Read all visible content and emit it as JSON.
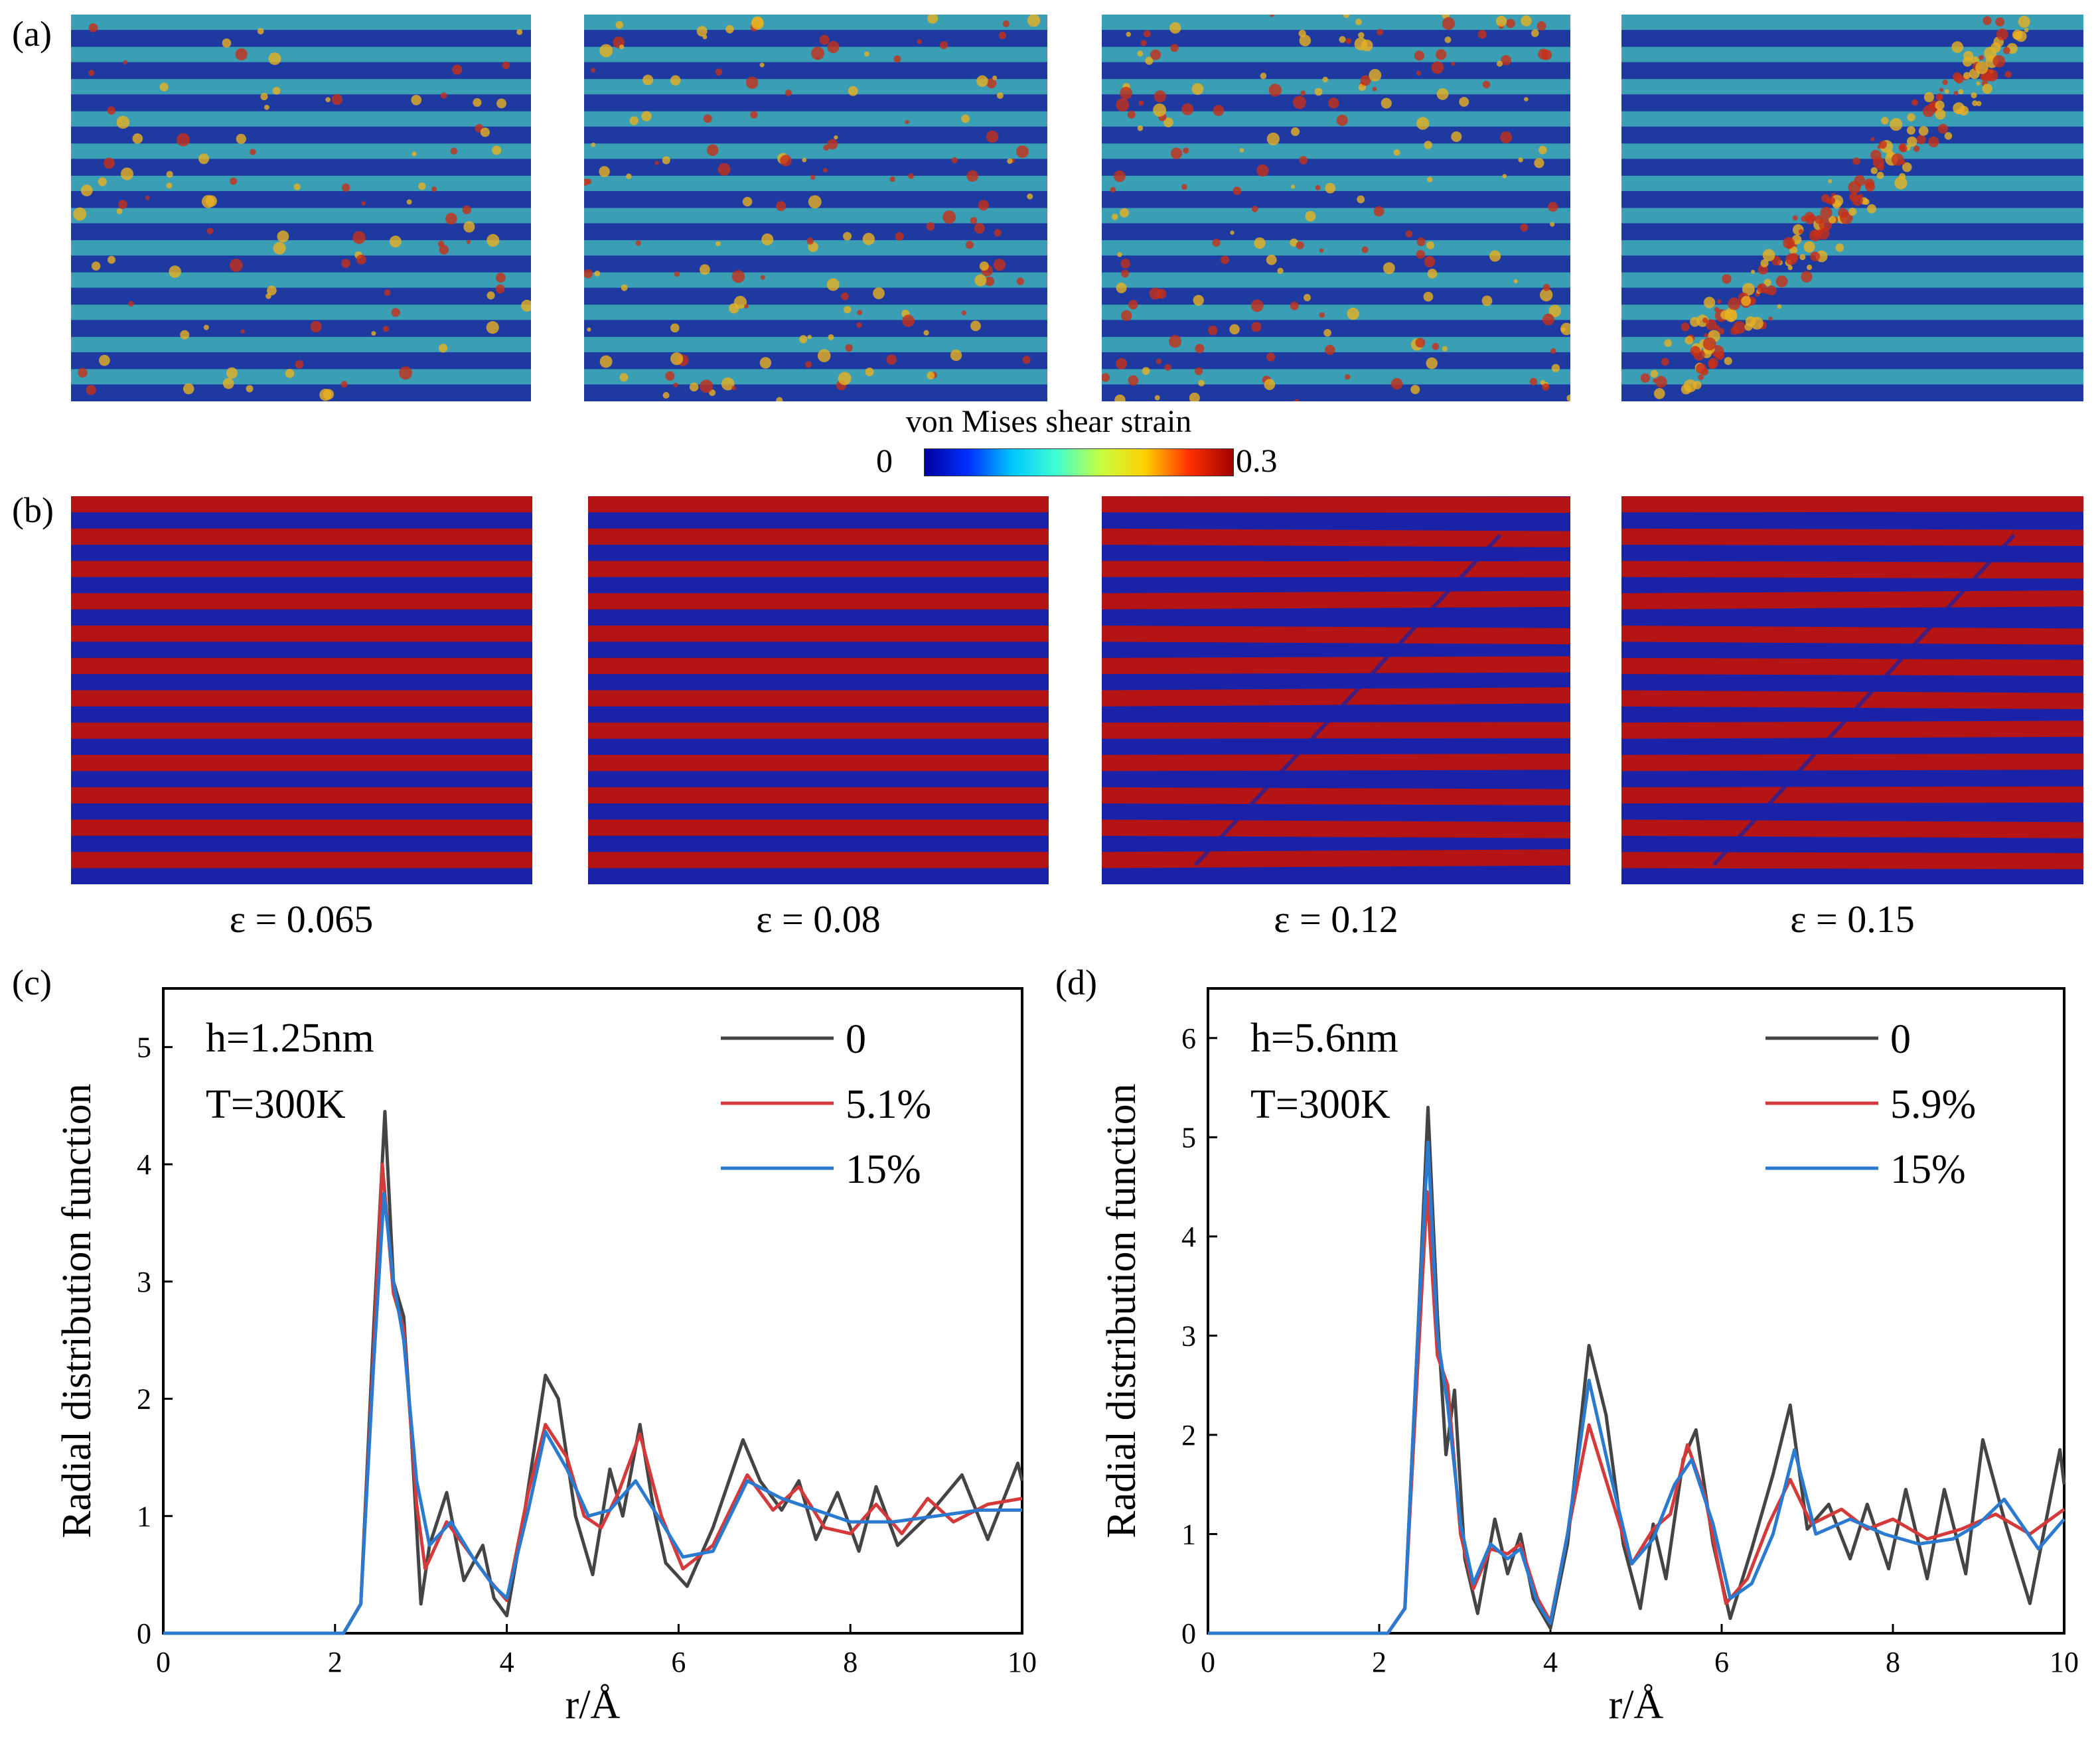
{
  "panels": {
    "a": "(a)",
    "b": "(b)",
    "c": "(c)",
    "d": "(d)"
  },
  "colorbar": {
    "title": "von Mises shear strain",
    "min_label": "0",
    "max_label": "0.3",
    "colors": [
      "#0000a0",
      "#0030ff",
      "#00c8ff",
      "#40ffd0",
      "#c8ff40",
      "#ffd000",
      "#ff3000",
      "#a00000"
    ]
  },
  "strain_levels": [
    "ε = 0.065",
    "ε = 0.08",
    "ε = 0.12",
    "ε = 0.15"
  ],
  "snapshot_colors": {
    "low_strain": "#1f3aa0",
    "mid_strain": "#3fb0b8",
    "high_strain": "#c83018",
    "phase_red": "#b41414",
    "phase_blue": "#1a22a8"
  },
  "chart_data": [
    {
      "type": "line",
      "panel": "(c)",
      "annotations": [
        "h=1.25nm",
        "T=300K"
      ],
      "xlabel": "r/Å",
      "ylabel": "Radial  distribution  function",
      "xlim": [
        0,
        10
      ],
      "ylim": [
        0,
        5.5
      ],
      "xticks": [
        "0",
        "2",
        "4",
        "6",
        "8",
        "10"
      ],
      "yticks": [
        "0",
        "1",
        "2",
        "3",
        "4",
        "5"
      ],
      "series": [
        {
          "name": "0",
          "color": "#444444",
          "x": [
            0,
            2.1,
            2.3,
            2.45,
            2.58,
            2.68,
            2.8,
            2.88,
            3.0,
            3.1,
            3.3,
            3.5,
            3.72,
            3.85,
            4.0,
            4.2,
            4.45,
            4.6,
            4.8,
            5.0,
            5.2,
            5.35,
            5.55,
            5.7,
            5.85,
            6.1,
            6.4,
            6.75,
            6.95,
            7.2,
            7.4,
            7.6,
            7.85,
            8.1,
            8.3,
            8.55,
            8.9,
            9.3,
            9.6,
            9.95,
            10
          ],
          "y": [
            0,
            0,
            0.25,
            2.6,
            4.45,
            3.0,
            2.7,
            1.8,
            0.25,
            0.75,
            1.2,
            0.45,
            0.75,
            0.3,
            0.15,
            1.0,
            2.2,
            2.0,
            1.0,
            0.5,
            1.4,
            1.0,
            1.78,
            1.1,
            0.6,
            0.4,
            0.9,
            1.65,
            1.3,
            1.05,
            1.3,
            0.8,
            1.2,
            0.7,
            1.25,
            0.75,
            1.0,
            1.35,
            0.8,
            1.45,
            1.3
          ]
        },
        {
          "name": "5.1%",
          "color": "#d43a3a",
          "x": [
            0,
            2.1,
            2.3,
            2.45,
            2.55,
            2.68,
            2.8,
            2.95,
            3.05,
            3.3,
            3.55,
            3.8,
            4.0,
            4.25,
            4.45,
            4.7,
            4.9,
            5.1,
            5.3,
            5.55,
            5.8,
            6.05,
            6.4,
            6.8,
            7.1,
            7.4,
            7.7,
            8.0,
            8.3,
            8.6,
            8.9,
            9.2,
            9.6,
            10
          ],
          "y": [
            0,
            0,
            0.25,
            2.4,
            4.0,
            2.9,
            2.6,
            1.1,
            0.55,
            0.95,
            0.7,
            0.45,
            0.28,
            1.2,
            1.78,
            1.5,
            1.0,
            0.9,
            1.2,
            1.7,
            1.0,
            0.55,
            0.75,
            1.35,
            1.05,
            1.25,
            0.9,
            0.85,
            1.1,
            0.85,
            1.15,
            0.95,
            1.1,
            1.15
          ]
        },
        {
          "name": "15%",
          "color": "#2a7ad0",
          "x": [
            0,
            2.1,
            2.3,
            2.45,
            2.57,
            2.68,
            2.8,
            2.95,
            3.1,
            3.35,
            3.6,
            3.85,
            4.0,
            4.25,
            4.45,
            4.7,
            4.95,
            5.2,
            5.5,
            5.8,
            6.05,
            6.4,
            6.8,
            7.2,
            7.6,
            8.0,
            8.5,
            9.0,
            9.5,
            10
          ],
          "y": [
            0,
            0,
            0.25,
            2.3,
            3.75,
            3.0,
            2.5,
            1.3,
            0.75,
            0.95,
            0.65,
            0.4,
            0.3,
            1.05,
            1.72,
            1.4,
            1.0,
            1.05,
            1.3,
            0.95,
            0.65,
            0.7,
            1.3,
            1.15,
            1.05,
            0.95,
            0.95,
            1.0,
            1.05,
            1.05
          ]
        }
      ]
    },
    {
      "type": "line",
      "panel": "(d)",
      "annotations": [
        "h=5.6nm",
        "T=300K"
      ],
      "xlabel": "r/Å",
      "ylabel": "Radial  distribution  function",
      "xlim": [
        0,
        10
      ],
      "ylim": [
        0,
        6.5
      ],
      "xticks": [
        "0",
        "2",
        "4",
        "6",
        "8",
        "10"
      ],
      "yticks": [
        "0",
        "1",
        "2",
        "3",
        "4",
        "5",
        "6"
      ],
      "series": [
        {
          "name": "0",
          "color": "#444444",
          "x": [
            0,
            2.1,
            2.3,
            2.45,
            2.57,
            2.68,
            2.78,
            2.88,
            3.0,
            3.15,
            3.35,
            3.5,
            3.65,
            3.8,
            4.0,
            4.2,
            4.45,
            4.65,
            4.85,
            5.05,
            5.2,
            5.35,
            5.55,
            5.7,
            5.9,
            6.1,
            6.35,
            6.6,
            6.8,
            7.0,
            7.25,
            7.5,
            7.7,
            7.95,
            8.15,
            8.4,
            8.6,
            8.85,
            9.05,
            9.3,
            9.6,
            9.95,
            10
          ],
          "y": [
            0,
            0,
            0.25,
            3.0,
            5.3,
            3.2,
            1.8,
            2.45,
            0.75,
            0.2,
            1.15,
            0.6,
            1.0,
            0.35,
            0.05,
            0.9,
            2.9,
            2.2,
            0.9,
            0.25,
            1.1,
            0.55,
            1.75,
            2.05,
            0.9,
            0.15,
            0.85,
            1.6,
            2.3,
            1.05,
            1.3,
            0.75,
            1.3,
            0.65,
            1.45,
            0.55,
            1.45,
            0.6,
            1.95,
            1.15,
            0.3,
            1.85,
            1.5
          ]
        },
        {
          "name": "5.9%",
          "color": "#d43a3a",
          "x": [
            0,
            2.1,
            2.3,
            2.45,
            2.56,
            2.68,
            2.8,
            2.95,
            3.1,
            3.3,
            3.5,
            3.65,
            3.85,
            4.0,
            4.2,
            4.45,
            4.7,
            4.95,
            5.2,
            5.4,
            5.6,
            5.8,
            6.05,
            6.3,
            6.55,
            6.8,
            7.05,
            7.4,
            7.7,
            8.0,
            8.4,
            8.8,
            9.2,
            9.6,
            10
          ],
          "y": [
            0,
            0,
            0.25,
            2.7,
            4.45,
            2.8,
            2.5,
            1.0,
            0.45,
            0.85,
            0.8,
            0.9,
            0.35,
            0.12,
            1.0,
            2.1,
            1.4,
            0.7,
            1.05,
            1.2,
            1.9,
            1.4,
            0.3,
            0.55,
            1.1,
            1.55,
            1.1,
            1.25,
            1.05,
            1.15,
            0.95,
            1.05,
            1.2,
            1.0,
            1.25
          ]
        },
        {
          "name": "15%",
          "color": "#2a7ad0",
          "x": [
            0,
            2.1,
            2.3,
            2.45,
            2.57,
            2.68,
            2.8,
            2.95,
            3.1,
            3.3,
            3.5,
            3.65,
            3.85,
            4.0,
            4.2,
            4.45,
            4.7,
            4.95,
            5.2,
            5.45,
            5.65,
            5.9,
            6.1,
            6.35,
            6.6,
            6.85,
            7.1,
            7.5,
            7.9,
            8.3,
            8.7,
            9.0,
            9.3,
            9.7,
            10
          ],
          "y": [
            0,
            0,
            0.25,
            3.0,
            4.95,
            3.0,
            2.3,
            1.1,
            0.5,
            0.9,
            0.75,
            0.85,
            0.3,
            0.1,
            1.0,
            2.55,
            1.6,
            0.7,
            0.95,
            1.5,
            1.75,
            1.1,
            0.35,
            0.5,
            1.0,
            1.85,
            1.0,
            1.15,
            1.0,
            0.9,
            0.95,
            1.1,
            1.35,
            0.85,
            1.15
          ]
        }
      ]
    }
  ]
}
